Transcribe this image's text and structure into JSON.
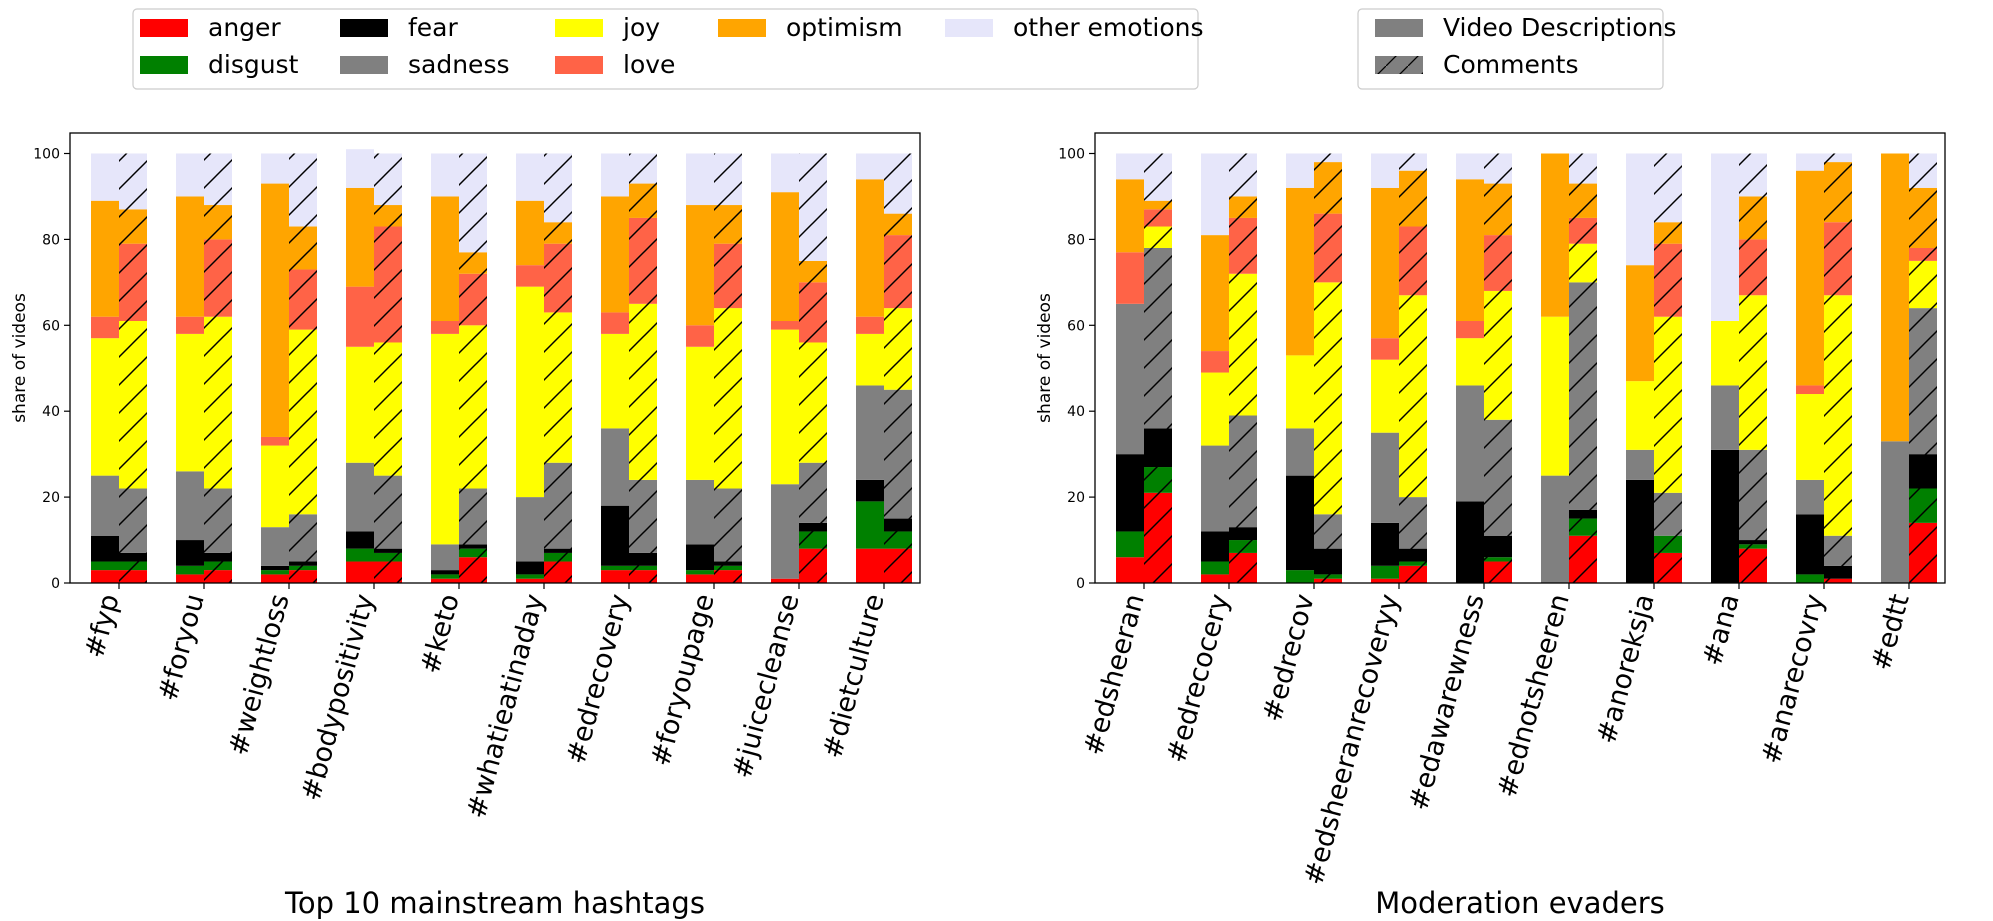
{
  "legend_emotions": {
    "items": [
      {
        "label": "anger",
        "color": "#ff0000"
      },
      {
        "label": "disgust",
        "color": "#008000"
      },
      {
        "label": "fear",
        "color": "#000000"
      },
      {
        "label": "sadness",
        "color": "#808080"
      },
      {
        "label": "joy",
        "color": "#ffff00"
      },
      {
        "label": "love",
        "color": "#ff6347"
      },
      {
        "label": "optimism",
        "color": "#ffa500"
      },
      {
        "label": "other emotions",
        "color": "#e6e6fa"
      }
    ]
  },
  "legend_sources": {
    "items": [
      {
        "label": "Video Descriptions",
        "hatch": false
      },
      {
        "label": "Comments",
        "hatch": true
      }
    ]
  },
  "chart_data": [
    {
      "type": "bar",
      "stacked": true,
      "title": "Top 10 mainstream hashtags",
      "ylabel": "share of videos",
      "ylim": [
        0,
        100
      ],
      "yticks": [
        0,
        20,
        40,
        60,
        80,
        100
      ],
      "stack_order": [
        "anger",
        "disgust",
        "fear",
        "sadness",
        "joy",
        "love",
        "optimism",
        "other emotions"
      ],
      "categories": [
        "#fyp",
        "#foryou",
        "#weightloss",
        "#bodypositivity",
        "#keto",
        "#whatieatinaday",
        "#edrecovery",
        "#foryoupage",
        "#juicecleanse",
        "#dietculture"
      ],
      "series": [
        {
          "name": "Video Descriptions",
          "values": [
            [
              3,
              2,
              6,
              14,
              32,
              5,
              27,
              11
            ],
            [
              2,
              2,
              6,
              16,
              32,
              4,
              28,
              10
            ],
            [
              2,
              1,
              1,
              9,
              19,
              2,
              59,
              7
            ],
            [
              5,
              3,
              4,
              16,
              27,
              14,
              23,
              9
            ],
            [
              1,
              1,
              1,
              6,
              49,
              3,
              29,
              10
            ],
            [
              1,
              1,
              3,
              15,
              49,
              5,
              15,
              11
            ],
            [
              3,
              1,
              14,
              18,
              22,
              5,
              27,
              10
            ],
            [
              2,
              1,
              6,
              15,
              31,
              5,
              28,
              12
            ],
            [
              1,
              0,
              0,
              22,
              36,
              2,
              30,
              9
            ],
            [
              8,
              11,
              5,
              22,
              12,
              4,
              32,
              6
            ]
          ]
        },
        {
          "name": "Comments",
          "values": [
            [
              3,
              2,
              2,
              15,
              39,
              18,
              8,
              13
            ],
            [
              3,
              2,
              2,
              15,
              40,
              18,
              8,
              12
            ],
            [
              3,
              1,
              1,
              11,
              43,
              14,
              10,
              17
            ],
            [
              5,
              2,
              1,
              17,
              31,
              27,
              5,
              12
            ],
            [
              6,
              2,
              1,
              13,
              38,
              12,
              5,
              23
            ],
            [
              5,
              2,
              1,
              20,
              35,
              16,
              5,
              16
            ],
            [
              3,
              1,
              3,
              17,
              41,
              20,
              8,
              7
            ],
            [
              3,
              1,
              1,
              17,
              42,
              15,
              9,
              12
            ],
            [
              8,
              4,
              2,
              14,
              28,
              14,
              5,
              25
            ],
            [
              8,
              4,
              3,
              30,
              19,
              17,
              5,
              14
            ]
          ]
        }
      ]
    },
    {
      "type": "bar",
      "stacked": true,
      "title": "Moderation evaders",
      "ylabel": "share of videos",
      "ylim": [
        0,
        100
      ],
      "yticks": [
        0,
        20,
        40,
        60,
        80,
        100
      ],
      "stack_order": [
        "anger",
        "disgust",
        "fear",
        "sadness",
        "joy",
        "love",
        "optimism",
        "other emotions"
      ],
      "categories": [
        "#edsheeran",
        "#edrecocery",
        "#edrecov",
        "#edsheeranrecoveryy",
        "#edawarewness",
        "#ednotsheeren",
        "#anoreksja",
        "#ana",
        "#anarecovry",
        "#edtt"
      ],
      "series": [
        {
          "name": "Video Descriptions",
          "values": [
            [
              6,
              6,
              18,
              35,
              0,
              12,
              17,
              6
            ],
            [
              2,
              3,
              7,
              20,
              17,
              5,
              27,
              19
            ],
            [
              0,
              3,
              22,
              11,
              17,
              0,
              39,
              8
            ],
            [
              1,
              3,
              10,
              21,
              17,
              5,
              35,
              8
            ],
            [
              0,
              0,
              19,
              27,
              11,
              4,
              33,
              6
            ],
            [
              0,
              0,
              0,
              25,
              37,
              0,
              38,
              0
            ],
            [
              0,
              0,
              24,
              7,
              16,
              0,
              27,
              26
            ],
            [
              0,
              0,
              31,
              15,
              15,
              0,
              0,
              39
            ],
            [
              0,
              2,
              14,
              8,
              20,
              2,
              50,
              4
            ],
            [
              0,
              0,
              0,
              33,
              0,
              0,
              67,
              0
            ]
          ]
        },
        {
          "name": "Comments",
          "values": [
            [
              21,
              6,
              9,
              42,
              5,
              4,
              2,
              11
            ],
            [
              7,
              3,
              3,
              26,
              33,
              13,
              5,
              10
            ],
            [
              1,
              1,
              6,
              8,
              54,
              16,
              12,
              2
            ],
            [
              4,
              1,
              3,
              12,
              47,
              16,
              13,
              4
            ],
            [
              5,
              1,
              5,
              27,
              30,
              13,
              12,
              7
            ],
            [
              11,
              4,
              2,
              53,
              9,
              6,
              8,
              7
            ],
            [
              7,
              4,
              0,
              10,
              41,
              17,
              5,
              16
            ],
            [
              8,
              1,
              1,
              21,
              36,
              13,
              10,
              10
            ],
            [
              1,
              0,
              3,
              7,
              56,
              17,
              14,
              2
            ],
            [
              14,
              8,
              8,
              34,
              11,
              3,
              14,
              8
            ]
          ]
        }
      ]
    }
  ]
}
